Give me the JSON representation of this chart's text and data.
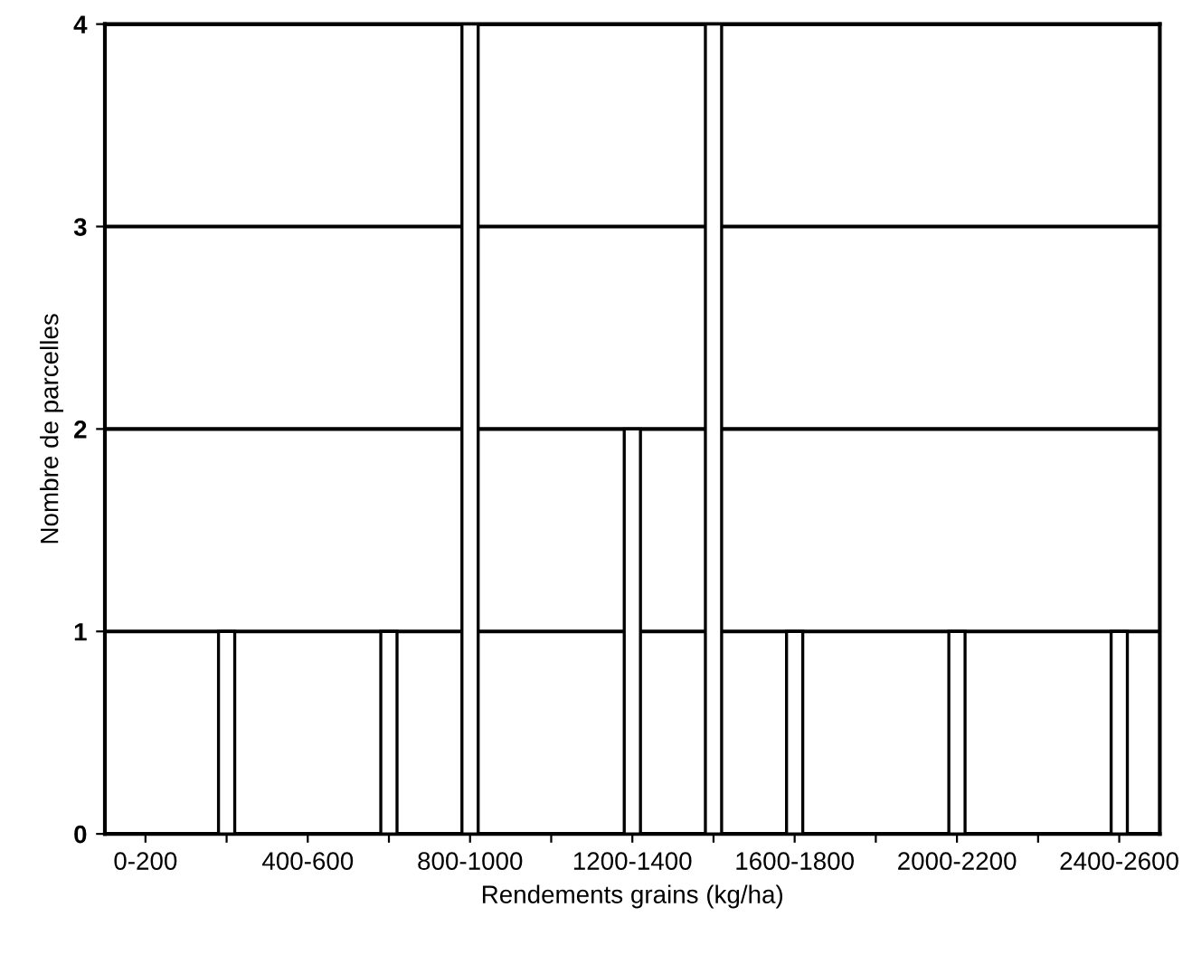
{
  "chart_data": {
    "type": "bar",
    "xlabel": "Rendements grains (kg/ha)",
    "ylabel": "Nombre de parcelles",
    "categories": [
      "0-200",
      null,
      "400-600",
      null,
      "800-1000",
      null,
      "1200-1400",
      null,
      "1600-1800",
      null,
      "2000-2200",
      null,
      "2400-2600"
    ],
    "values": [
      0,
      1,
      0,
      1,
      4,
      0,
      2,
      4,
      1,
      0,
      1,
      0,
      1
    ],
    "color": "#ffffff",
    "ylim": [
      0,
      4
    ],
    "yticks": [
      0,
      1,
      2,
      3,
      4
    ],
    "grid": "y"
  }
}
